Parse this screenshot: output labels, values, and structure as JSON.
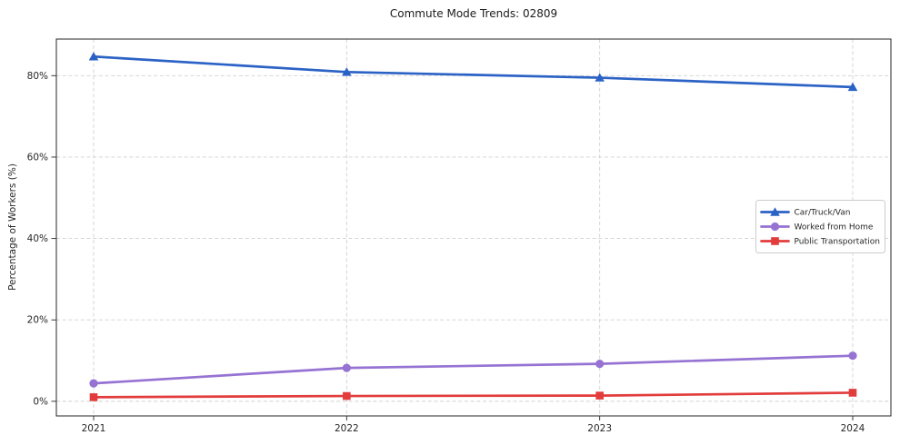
{
  "chart_data": {
    "type": "line",
    "title": "Commute Mode Trends: 02809",
    "xlabel": "",
    "ylabel": "Percentage of Workers (%)",
    "x": [
      2021,
      2022,
      2023,
      2024
    ],
    "x_tick_labels": [
      "2021",
      "2022",
      "2023",
      "2024"
    ],
    "y_ticks": [
      0,
      20,
      40,
      60,
      80
    ],
    "y_tick_labels": [
      "0%",
      "20%",
      "40%",
      "60%",
      "80%"
    ],
    "ylim": [
      -3.6,
      89.0
    ],
    "grid": true,
    "legend_position": "center-right",
    "series": [
      {
        "name": "Car/Truck/Van",
        "marker": "triangle",
        "color": "#2b62c5",
        "values": [
          84.7,
          80.9,
          79.5,
          77.2
        ]
      },
      {
        "name": "Worked from Home",
        "marker": "circle",
        "color": "#9673d3",
        "values": [
          4.4,
          8.2,
          9.2,
          11.2
        ]
      },
      {
        "name": "Public Transportation",
        "marker": "square",
        "color": "#e23c3c",
        "values": [
          1.0,
          1.3,
          1.4,
          2.1
        ]
      }
    ],
    "colors": {
      "grid": "#d0d0d0",
      "spine": "#262626",
      "tick_text": "#262626",
      "legend_border": "#cccccc",
      "legend_bg": "#ffffff"
    }
  }
}
